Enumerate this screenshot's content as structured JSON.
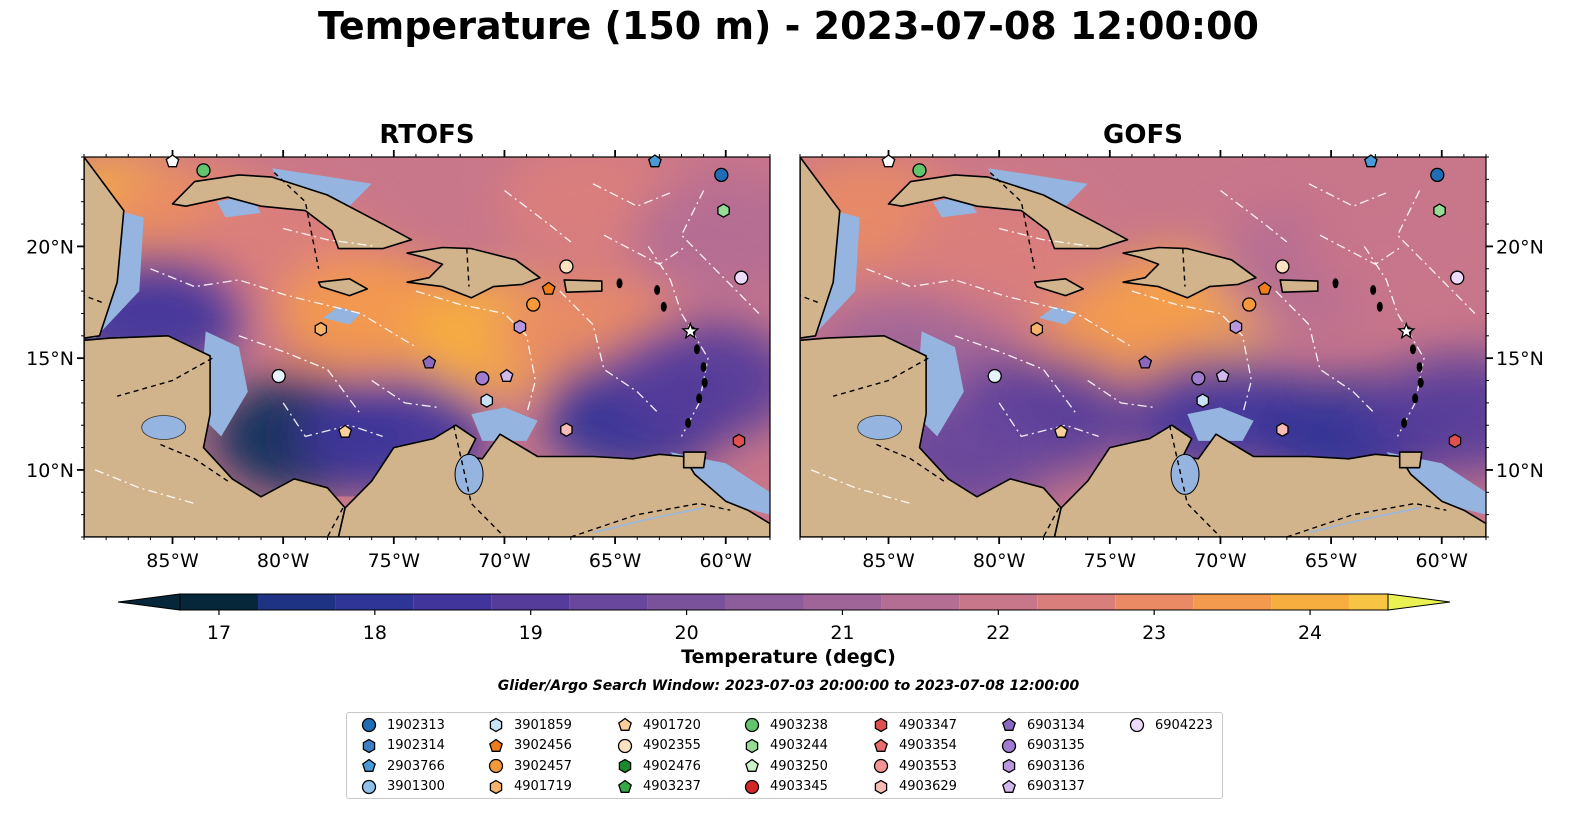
{
  "figure": {
    "title": "Temperature (150 m) - 2023-07-08 12:00:00",
    "search_window": "Glider/Argo Search Window: 2023-07-03 20:00:00 to 2023-07-08 12:00:00"
  },
  "panels": [
    {
      "title": "RTOFS"
    },
    {
      "title": "GOFS"
    }
  ],
  "colorbar": {
    "label": "Temperature (degC)",
    "vmin": 16.75,
    "vmax": 24.5,
    "step": 0.5,
    "ticks": [
      "17",
      "18",
      "19",
      "20",
      "21",
      "22",
      "23",
      "24"
    ],
    "colors": [
      "#06263a",
      "#0e2e5c",
      "#1e3383",
      "#2f3497",
      "#41359c",
      "#553c9b",
      "#68479c",
      "#7a529c",
      "#8d5c9a",
      "#a06598",
      "#b46e93",
      "#c8768a",
      "#da7e7c",
      "#e98a65",
      "#f49a4e",
      "#f8ae3f",
      "#f7c444",
      "#f1df4f",
      "#e9f252"
    ],
    "land_color": "#d2b48c",
    "shelf_color": "#95b4e0"
  },
  "chart_data": [
    {
      "type": "heatmap",
      "title": "RTOFS",
      "variable": "Temperature (150 m)",
      "units": "degC",
      "xlim": [
        -89,
        -58
      ],
      "ylim": [
        7,
        24
      ],
      "xticks": [
        "85°W",
        "80°W",
        "75°W",
        "70°W",
        "65°W",
        "60°W"
      ],
      "yticks": [
        "10°N",
        "15°N",
        "20°N"
      ],
      "fields": [
        {
          "lon": -87,
          "lat": 21.5,
          "temp": 24.3
        },
        {
          "lon": -84,
          "lat": 21.0,
          "temp": 23.6
        },
        {
          "lon": -80,
          "lat": 20.0,
          "temp": 23.0
        },
        {
          "lon": -76,
          "lat": 17.0,
          "temp": 23.8
        },
        {
          "lon": -70,
          "lat": 16.0,
          "temp": 24.4
        },
        {
          "lon": -66,
          "lat": 16.0,
          "temp": 23.4
        },
        {
          "lon": -66,
          "lat": 22.0,
          "temp": 22.8
        },
        {
          "lon": -60,
          "lat": 20.5,
          "temp": 22.2
        },
        {
          "lon": -86,
          "lat": 17.0,
          "temp": 19.2
        },
        {
          "lon": -79,
          "lat": 11.5,
          "temp": 17.6
        },
        {
          "lon": -75,
          "lat": 11.5,
          "temp": 19.0
        },
        {
          "lon": -64,
          "lat": 12.5,
          "temp": 18.6
        },
        {
          "lon": -61,
          "lat": 14.0,
          "temp": 19.6
        }
      ]
    },
    {
      "type": "heatmap",
      "title": "GOFS",
      "variable": "Temperature (150 m)",
      "units": "degC",
      "xlim": [
        -89,
        -58
      ],
      "ylim": [
        7,
        24
      ],
      "xticks": [
        "85°W",
        "80°W",
        "75°W",
        "70°W",
        "65°W",
        "60°W"
      ],
      "yticks": [
        "10°N",
        "15°N",
        "20°N"
      ],
      "fields": [
        {
          "lon": -86,
          "lat": 21.5,
          "temp": 23.5
        },
        {
          "lon": -80,
          "lat": 20.0,
          "temp": 22.8
        },
        {
          "lon": -72,
          "lat": 17.0,
          "temp": 24.5
        },
        {
          "lon": -74,
          "lat": 16.0,
          "temp": 24.0
        },
        {
          "lon": -66,
          "lat": 19.0,
          "temp": 22.0
        },
        {
          "lon": -62,
          "lat": 20.0,
          "temp": 22.6
        },
        {
          "lon": -84,
          "lat": 15.0,
          "temp": 21.6
        },
        {
          "lon": -78,
          "lat": 12.5,
          "temp": 19.4
        },
        {
          "lon": -70,
          "lat": 12.5,
          "temp": 19.2
        },
        {
          "lon": -64,
          "lat": 11.5,
          "temp": 18.4
        },
        {
          "lon": -59,
          "lat": 12.5,
          "temp": 19.4
        },
        {
          "lon": -82,
          "lat": 10.5,
          "temp": 19.8
        }
      ]
    }
  ],
  "platforms": [
    {
      "id": "1902313",
      "marker": "circle",
      "color": "#1f6eb5",
      "lon": -60.2,
      "lat": 23.2
    },
    {
      "id": "1902314",
      "marker": "hexagon",
      "color": "#3f80c4",
      "lon": null,
      "lat": null
    },
    {
      "id": "2903766",
      "marker": "pentagon",
      "color": "#4a9ad6",
      "lon": -63.2,
      "lat": 23.8
    },
    {
      "id": "3901300",
      "marker": "circle",
      "color": "#8ec0ea",
      "lon": null,
      "lat": null
    },
    {
      "id": "3901859",
      "marker": "hexagon",
      "color": "#c9e2f7",
      "lon": -70.8,
      "lat": 13.1
    },
    {
      "id": "3902456",
      "marker": "pentagon",
      "color": "#f07d1a",
      "lon": -68.0,
      "lat": 18.1
    },
    {
      "id": "3902457",
      "marker": "circle",
      "color": "#f59a3a",
      "lon": -68.7,
      "lat": 17.4
    },
    {
      "id": "4901719",
      "marker": "hexagon",
      "color": "#f7b36b",
      "lon": -78.3,
      "lat": 16.3
    },
    {
      "id": "4901720",
      "marker": "pentagon",
      "color": "#fbcf9a",
      "lon": -77.2,
      "lat": 11.7
    },
    {
      "id": "4902355",
      "marker": "circle",
      "color": "#fde2c2",
      "lon": -67.2,
      "lat": 19.1
    },
    {
      "id": "4902476",
      "marker": "hexagon",
      "color": "#1a8a2c",
      "lon": null,
      "lat": null
    },
    {
      "id": "4903237",
      "marker": "pentagon",
      "color": "#35a844",
      "lon": null,
      "lat": null
    },
    {
      "id": "4903238",
      "marker": "circle",
      "color": "#62c46c",
      "lon": -83.6,
      "lat": 23.4
    },
    {
      "id": "4903244",
      "marker": "hexagon",
      "color": "#97dc96",
      "lon": -60.1,
      "lat": 21.6
    },
    {
      "id": "4903250",
      "marker": "pentagon",
      "color": "#cdf1c9",
      "lon": null,
      "lat": null
    },
    {
      "id": "4903345",
      "marker": "circle",
      "color": "#d62728",
      "lon": null,
      "lat": null
    },
    {
      "id": "4903347",
      "marker": "hexagon",
      "color": "#e05050",
      "lon": -59.4,
      "lat": 11.3
    },
    {
      "id": "4903354",
      "marker": "pentagon",
      "color": "#ea6c6c",
      "lon": null,
      "lat": null
    },
    {
      "id": "4903553",
      "marker": "circle",
      "color": "#f39393",
      "lon": null,
      "lat": null
    },
    {
      "id": "4903629",
      "marker": "hexagon",
      "color": "#f7bdb6",
      "lon": -67.2,
      "lat": 11.8
    },
    {
      "id": "6903134",
      "marker": "pentagon",
      "color": "#8c69c0",
      "lon": -73.4,
      "lat": 14.8
    },
    {
      "id": "6903135",
      "marker": "circle",
      "color": "#a07bd0",
      "lon": -71.0,
      "lat": 14.1
    },
    {
      "id": "6903136",
      "marker": "hexagon",
      "color": "#b897e0",
      "lon": -69.3,
      "lat": 16.4
    },
    {
      "id": "6903137",
      "marker": "pentagon",
      "color": "#d1b9ee",
      "lon": -69.9,
      "lat": 14.2
    },
    {
      "id": "6904223",
      "marker": "circle",
      "color": "#ecdcf9",
      "lon": -59.3,
      "lat": 18.6
    },
    {
      "id": "extra-a",
      "marker": "circle",
      "color": "#e6f3ff",
      "lon": -80.2,
      "lat": 14.2,
      "hidden_legend": true
    },
    {
      "id": "extra-b",
      "marker": "pentagon",
      "color": "#ffffff",
      "lon": -85.0,
      "lat": 23.8,
      "hidden_legend": true
    },
    {
      "id": "extra-c",
      "marker": "star",
      "color": "#ffffff",
      "lon": -61.6,
      "lat": 16.2,
      "hidden_legend": true
    }
  ]
}
